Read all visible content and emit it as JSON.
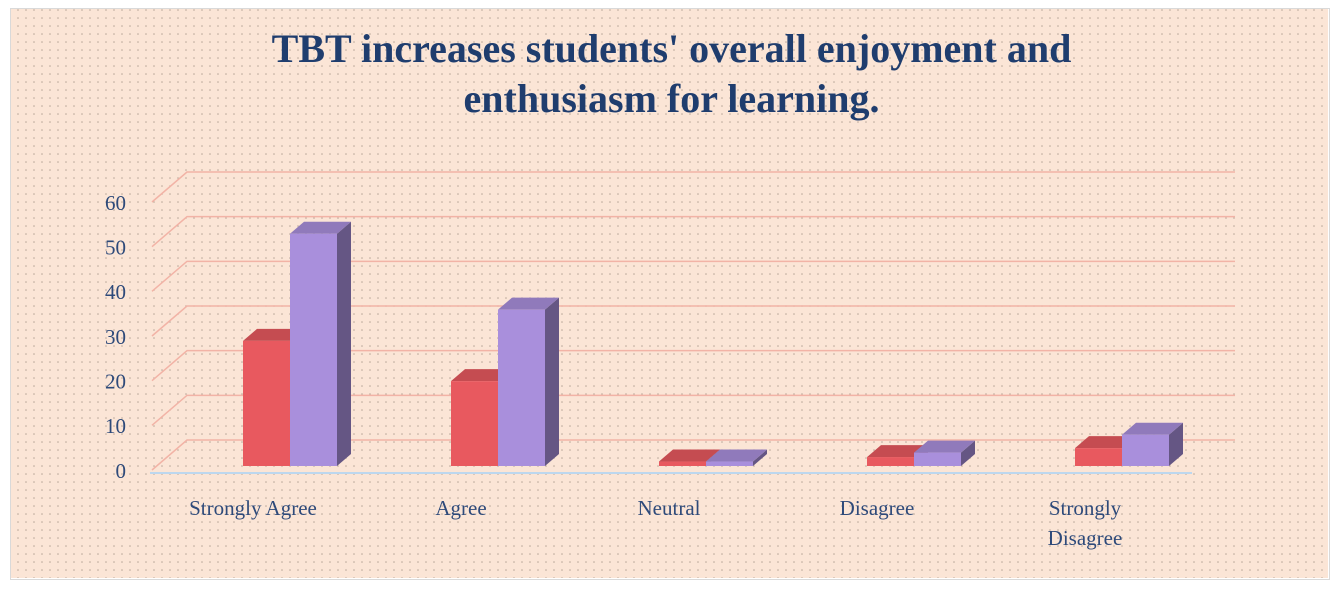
{
  "chart_data": {
    "type": "bar3d",
    "title": "TBT increases students' overall enjoyment and enthusiasm for learning.",
    "categories": [
      "Strongly Agree",
      "Agree",
      "Neutral",
      "Disagree",
      "Strongly Disagree"
    ],
    "series": [
      {
        "color": "#e8595f",
        "values": [
          28,
          19,
          1,
          2,
          4
        ]
      },
      {
        "color": "#a98fdc",
        "values": [
          52,
          35,
          1,
          3,
          7
        ]
      }
    ],
    "ylim": [
      0,
      60
    ],
    "yticks": [
      0,
      10,
      20,
      30,
      40,
      50,
      60
    ],
    "grid": true
  }
}
